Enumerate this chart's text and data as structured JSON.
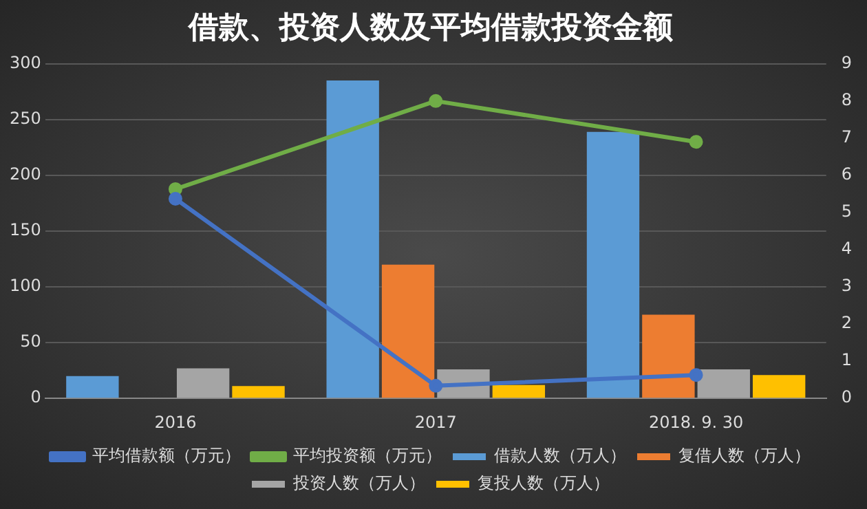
{
  "chart_data": {
    "type": "bar",
    "title": "借款、投资人数及平均借款投资金额",
    "categories": [
      "2016",
      "2017",
      "2018. 9. 30"
    ],
    "series": [
      {
        "name": "借款人数（万人）",
        "color": "#5b9bd5",
        "values": [
          20,
          285,
          239
        ]
      },
      {
        "name": "复借人数（万人）",
        "color": "#ed7d31",
        "values": [
          0,
          120,
          75
        ]
      },
      {
        "name": "投资人数（万人）",
        "color": "#a5a5a5",
        "values": [
          27,
          26,
          26
        ]
      },
      {
        "name": "复投人数（万人）",
        "color": "#ffc000",
        "values": [
          11,
          12,
          21
        ]
      },
      {
        "name": "平均借款额（万元）",
        "color": "#4472c4",
        "type": "line",
        "axis": "y2",
        "values": [
          5.37,
          0.34,
          0.63
        ]
      },
      {
        "name": "平均投资额（万元）",
        "color": "#70ad47",
        "type": "line",
        "axis": "y2",
        "values": [
          5.63,
          8.0,
          6.9
        ]
      }
    ],
    "ylim": [
      0,
      300
    ],
    "yticks": [
      0,
      50,
      100,
      150,
      200,
      250,
      300
    ],
    "y2lim": [
      0,
      9
    ],
    "y2ticks": [
      0,
      1,
      2,
      3,
      4,
      5,
      6,
      7,
      8,
      9
    ],
    "grid": "y",
    "legend": "bottom",
    "marker": "circle"
  }
}
